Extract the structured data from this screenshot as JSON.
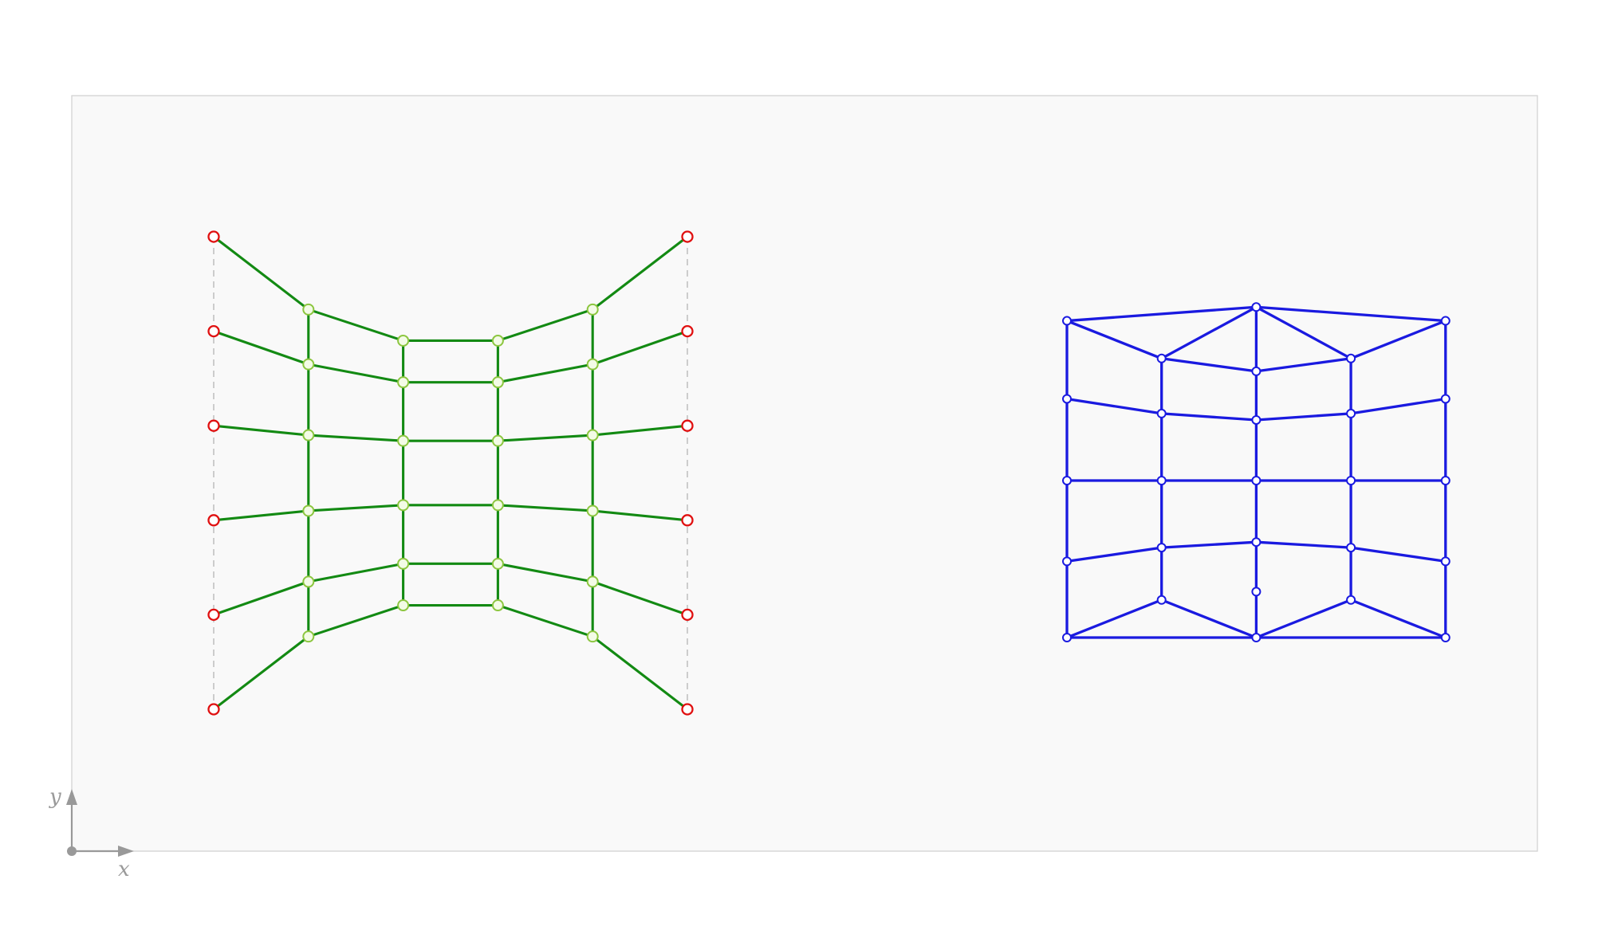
{
  "axes": {
    "x_label": "x",
    "y_label": "y"
  },
  "colors": {
    "background": "#f9f9f9",
    "frame": "#d2d2d2",
    "form_edge": "#138a13",
    "fixed_node": "#e01010",
    "free_node": "#8cc63f",
    "force_edge": "#1a1ae0",
    "guide_line": "#c8c8c8",
    "axis": "#999999"
  },
  "form_diagram": {
    "fixed_nodes": [
      [
        0,
        5
      ],
      [
        0,
        4
      ],
      [
        0,
        3
      ],
      [
        0,
        2
      ],
      [
        0,
        1
      ],
      [
        0,
        0
      ],
      [
        5,
        5
      ],
      [
        5,
        4
      ],
      [
        5,
        3
      ],
      [
        5,
        2
      ],
      [
        5,
        1
      ],
      [
        5,
        0
      ]
    ],
    "free_nodes": [
      [
        1,
        4.23
      ],
      [
        1,
        3.65
      ],
      [
        1,
        2.9
      ],
      [
        1,
        2.1
      ],
      [
        1,
        1.35
      ],
      [
        1,
        0.77
      ],
      [
        2,
        3.9
      ],
      [
        2,
        3.46
      ],
      [
        2,
        2.84
      ],
      [
        2,
        2.16
      ],
      [
        2,
        1.54
      ],
      [
        2,
        1.1
      ],
      [
        3,
        3.9
      ],
      [
        3,
        3.46
      ],
      [
        3,
        2.84
      ],
      [
        3,
        2.16
      ],
      [
        3,
        1.54
      ],
      [
        3,
        1.1
      ],
      [
        4,
        4.23
      ],
      [
        4,
        3.65
      ],
      [
        4,
        2.9
      ],
      [
        4,
        2.1
      ],
      [
        4,
        1.35
      ],
      [
        4,
        0.77
      ]
    ],
    "column_heights": [
      [
        5,
        4,
        3,
        2,
        1,
        0
      ],
      [
        4.23,
        3.65,
        2.9,
        2.1,
        1.35,
        0.77
      ],
      [
        3.9,
        3.46,
        2.84,
        2.16,
        1.54,
        1.1
      ],
      [
        3.9,
        3.46,
        2.84,
        2.16,
        1.54,
        1.1
      ],
      [
        4.23,
        3.65,
        2.9,
        2.1,
        1.35,
        0.77
      ],
      [
        5,
        4,
        3,
        2,
        1,
        0
      ]
    ]
  },
  "force_diagram": {
    "nodes": [
      [
        0,
        3.45
      ],
      [
        1,
        3.04
      ],
      [
        2,
        3.6
      ],
      [
        3,
        3.04
      ],
      [
        4,
        3.45
      ],
      [
        2,
        2.9
      ],
      [
        0,
        2.6
      ],
      [
        1,
        2.44
      ],
      [
        2,
        2.37
      ],
      [
        3,
        2.44
      ],
      [
        4,
        2.6
      ],
      [
        0,
        1.71
      ],
      [
        1,
        1.71
      ],
      [
        2,
        1.71
      ],
      [
        3,
        1.71
      ],
      [
        4,
        1.71
      ],
      [
        0,
        0.83
      ],
      [
        1,
        0.98
      ],
      [
        2,
        1.04
      ],
      [
        3,
        0.98
      ],
      [
        4,
        0.83
      ],
      [
        2,
        0.5
      ],
      [
        0,
        0
      ],
      [
        1,
        0.41
      ],
      [
        2,
        0
      ],
      [
        3,
        0.41
      ],
      [
        4,
        0
      ]
    ],
    "edges": [
      [
        0,
        2
      ],
      [
        2,
        4
      ],
      [
        0,
        1
      ],
      [
        1,
        2
      ],
      [
        2,
        3
      ],
      [
        3,
        4
      ],
      [
        1,
        5
      ],
      [
        5,
        3
      ],
      [
        2,
        5
      ],
      [
        0,
        6
      ],
      [
        1,
        7
      ],
      [
        5,
        8
      ],
      [
        3,
        9
      ],
      [
        4,
        10
      ],
      [
        6,
        7
      ],
      [
        7,
        8
      ],
      [
        8,
        9
      ],
      [
        9,
        10
      ],
      [
        6,
        11
      ],
      [
        7,
        12
      ],
      [
        8,
        13
      ],
      [
        9,
        14
      ],
      [
        10,
        15
      ],
      [
        11,
        12
      ],
      [
        12,
        13
      ],
      [
        13,
        14
      ],
      [
        14,
        15
      ],
      [
        11,
        16
      ],
      [
        12,
        17
      ],
      [
        13,
        18
      ],
      [
        14,
        19
      ],
      [
        15,
        20
      ],
      [
        16,
        17
      ],
      [
        17,
        18
      ],
      [
        18,
        19
      ],
      [
        19,
        20
      ],
      [
        17,
        23
      ],
      [
        18,
        21
      ],
      [
        19,
        25
      ],
      [
        21,
        24
      ],
      [
        16,
        22
      ],
      [
        20,
        26
      ],
      [
        22,
        23
      ],
      [
        23,
        24
      ],
      [
        24,
        25
      ],
      [
        25,
        26
      ],
      [
        22,
        24
      ],
      [
        24,
        26
      ]
    ]
  }
}
